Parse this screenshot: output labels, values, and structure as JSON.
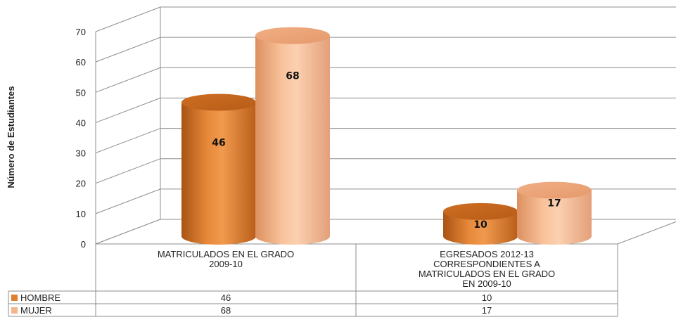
{
  "chart_data": {
    "type": "bar",
    "style": "3d-cylinder",
    "title": "",
    "ylabel": "Número de Estudiantes",
    "xlabel": "",
    "ylim": [
      0,
      70
    ],
    "yticks": [
      "0",
      "10",
      "20",
      "30",
      "40",
      "50",
      "60",
      "70"
    ],
    "grid": true,
    "legend": "data-table-below",
    "categories": [
      "MATRICULADOS EN EL GRADO 2009-10",
      "EGRESADOS 2012-13 CORRESPONDIENTES A MATRICULADOS EN EL GRADO EN 2009-10"
    ],
    "category_lines": [
      [
        "MATRICULADOS EN EL GRADO",
        "2009-10"
      ],
      [
        "EGRESADOS 2012-13",
        "CORRESPONDIENTES A",
        "MATRICULADOS EN EL GRADO",
        "EN 2009-10"
      ]
    ],
    "series": [
      {
        "name": "HOMBRE",
        "values": [
          46,
          10
        ],
        "color": "#e07f2e"
      },
      {
        "name": "MUJER",
        "values": [
          68,
          17
        ],
        "color": "#f4b58c"
      }
    ]
  }
}
